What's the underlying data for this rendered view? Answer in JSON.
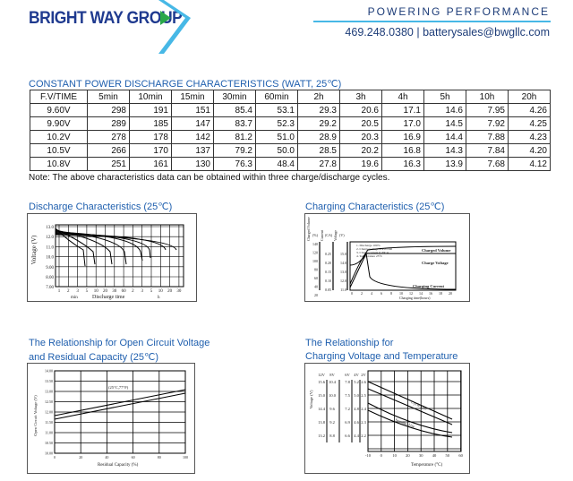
{
  "header": {
    "logo": "BRIGHT WAY GROUP",
    "tagline": "POWERING PERFORMANCE",
    "contact": "469.248.0380 | batterysales@bwgllc.com",
    "colors": {
      "brand": "#1f3a8f",
      "accent": "#47b8e6",
      "arrow": "#2aa84a"
    }
  },
  "table": {
    "title": "CONSTANT POWER DISCHARGE CHARACTERISTICS (WATT, 25℃)",
    "headers": [
      "F.V/TIME",
      "5min",
      "10min",
      "15min",
      "30min",
      "60min",
      "2h",
      "3h",
      "4h",
      "5h",
      "10h",
      "20h"
    ],
    "rows": [
      [
        "9.60V",
        "298",
        "191",
        "151",
        "85.4",
        "53.1",
        "29.3",
        "20.6",
        "17.1",
        "14.6",
        "7.95",
        "4.26"
      ],
      [
        "9.90V",
        "289",
        "185",
        "147",
        "83.7",
        "52.3",
        "29.2",
        "20.5",
        "17.0",
        "14.5",
        "7.92",
        "4.25"
      ],
      [
        "10.2V",
        "278",
        "178",
        "142",
        "81.2",
        "51.0",
        "28.9",
        "20.3",
        "16.9",
        "14.4",
        "7.88",
        "4.23"
      ],
      [
        "10.5V",
        "266",
        "170",
        "137",
        "79.2",
        "50.0",
        "28.5",
        "20.2",
        "16.8",
        "14.3",
        "7.84",
        "4.20"
      ],
      [
        "10.8V",
        "251",
        "161",
        "130",
        "76.3",
        "48.4",
        "27.8",
        "19.6",
        "16.3",
        "13.9",
        "7.68",
        "4.12"
      ]
    ],
    "note": "Note: The above characteristics data can be obtained within three charge/discharge cycles."
  },
  "charts": {
    "discharge": {
      "title": "Discharge Characteristics (25℃)",
      "ylabel": "Voltage (V)",
      "yticks": [
        "13.0",
        "12.0",
        "11.0",
        "10.0",
        "9.00",
        "8.00",
        "7.00"
      ],
      "xticks": [
        "1",
        "2",
        "3",
        "5",
        "10",
        "20",
        "30",
        "60",
        "2",
        "3",
        "5",
        "10",
        "20",
        "30"
      ],
      "xunit_min": "min",
      "xunit_h": "h",
      "xlabel": "Discharge time"
    },
    "charging": {
      "title": "Charging Characteristics (25℃)",
      "col_labels": [
        "Charged Volume",
        "Current",
        "Voltage"
      ],
      "col_units": [
        "(%)",
        "(CA)",
        "(V)"
      ],
      "pct_ticks": [
        "140",
        "120",
        "100",
        "80",
        "60",
        "40",
        "20"
      ],
      "ca_ticks": [
        "0.25",
        "0.20",
        "0.15",
        "0.10",
        "0.05"
      ],
      "v_ticks": [
        "15.0",
        "14.0",
        "13.0",
        "12.0",
        "11.0"
      ],
      "notes": [
        "1. Discharge 100%",
        "2. Charge voltage 2.45V/cell",
        "3. Charge current 0.20CA",
        "4. Temperature 25°C"
      ],
      "series": [
        "Charged Volume",
        "Charge Voltage",
        "Charging Current"
      ],
      "xticks": [
        "0",
        "2",
        "4",
        "6",
        "8",
        "10",
        "12",
        "14",
        "16",
        "18",
        "20"
      ],
      "xlabel": "Charging time(hours)"
    },
    "ocv": {
      "title_line1": "The Relationship for Open Circuit Voltage",
      "title_line2": "and Residual Capacity (25℃)",
      "ylabel": "Open Circuit Voltage (V)",
      "yticks": [
        "14.00",
        "13.50",
        "13.00",
        "12.50",
        "12.00",
        "11.50",
        "11.00",
        "10.50",
        "10.00"
      ],
      "xticks": [
        "0",
        "20",
        "40",
        "60",
        "80",
        "100"
      ],
      "xlabel": "Residual Capacity (%)",
      "annotation": "(25°C,77°F)"
    },
    "temp": {
      "title_line1": "The Relationship for",
      "title_line2": "Charging Voltage and Temperature",
      "ylabel": "Voltage (V)",
      "col_headers": [
        "12V",
        "8V",
        "6V",
        "4V",
        "2V"
      ],
      "rows": [
        [
          "15.6",
          "10.4",
          "7.8",
          "5.2",
          "2.6"
        ],
        [
          "15.0",
          "10.0",
          "7.5",
          "5.0",
          "2.5"
        ],
        [
          "14.4",
          "9.6",
          "7.2",
          "4.8",
          "2.4"
        ],
        [
          "13.8",
          "9.2",
          "6.9",
          "4.6",
          "2.3"
        ],
        [
          "13.2",
          "8.8",
          "6.6",
          "4.4",
          "2.2"
        ]
      ],
      "xticks": [
        "-10",
        "0",
        "10",
        "20",
        "30",
        "40",
        "50",
        "60"
      ],
      "xlabel": "Temperature (°C)",
      "series": [
        "Cycle Use",
        "Standby Use"
      ]
    }
  }
}
